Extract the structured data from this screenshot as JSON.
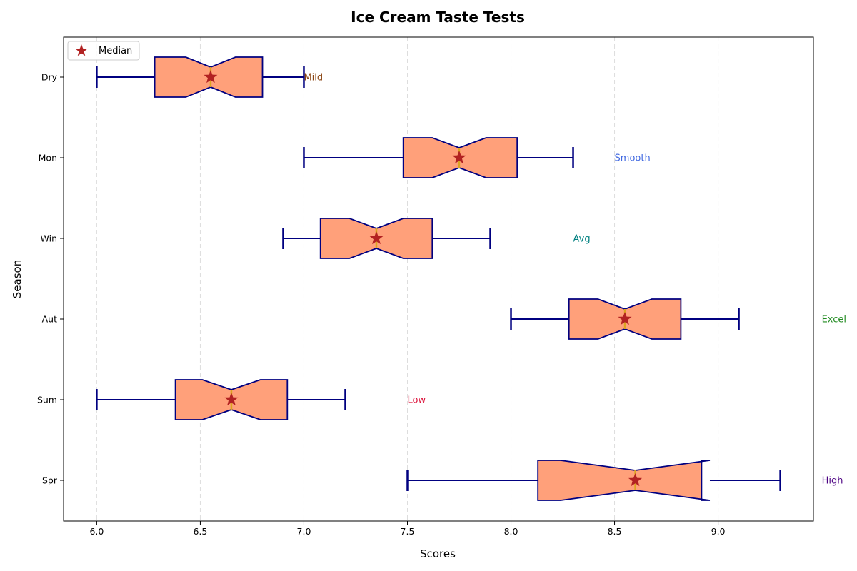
{
  "chart_data": {
    "type": "boxplot",
    "orientation": "horizontal",
    "notched": true,
    "title": "Ice Cream Taste Tests",
    "xlabel": "Scores",
    "ylabel": "Season",
    "xlim": [
      5.84,
      9.46
    ],
    "xticks": [
      6.0,
      6.5,
      7.0,
      7.5,
      8.0,
      8.5,
      9.0
    ],
    "xtick_labels": [
      "6.0",
      "6.5",
      "7.0",
      "7.5",
      "8.0",
      "8.5",
      "9.0"
    ],
    "grid": "vertical-dashed",
    "legend": {
      "placement": "top-left",
      "entries": [
        {
          "label": "Median",
          "marker": "star"
        }
      ]
    },
    "colors": {
      "box_fill": "#FFA07A",
      "box_edge": "#000080",
      "median_line": "#DAA520",
      "median_marker": "#B22222",
      "grid": "#dddddd"
    },
    "categories": [
      "Dry",
      "Mon",
      "Win",
      "Aut",
      "Sum",
      "Spr"
    ],
    "boxes": [
      {
        "category": "Dry",
        "whislo": 6.0,
        "q1": 6.28,
        "notchlo": 6.43,
        "med": 6.55,
        "notchhi": 6.67,
        "q3": 6.8,
        "whishi": 7.0
      },
      {
        "category": "Mon",
        "whislo": 7.0,
        "q1": 7.48,
        "notchlo": 7.62,
        "med": 7.75,
        "notchhi": 7.88,
        "q3": 8.03,
        "whishi": 8.3
      },
      {
        "category": "Win",
        "whislo": 6.9,
        "q1": 7.08,
        "notchlo": 7.22,
        "med": 7.35,
        "notchhi": 7.48,
        "q3": 7.62,
        "whishi": 7.9
      },
      {
        "category": "Aut",
        "whislo": 8.0,
        "q1": 8.28,
        "notchlo": 8.42,
        "med": 8.55,
        "notchhi": 8.68,
        "q3": 8.82,
        "whishi": 9.1
      },
      {
        "category": "Sum",
        "whislo": 6.0,
        "q1": 6.38,
        "notchlo": 6.51,
        "med": 6.65,
        "notchhi": 6.79,
        "q3": 6.92,
        "whishi": 7.2
      },
      {
        "category": "Spr",
        "whislo": 7.5,
        "q1": 8.13,
        "notchlo": 8.24,
        "med": 8.6,
        "notchhi": 8.96,
        "q3": 8.92,
        "whishi": 9.3
      }
    ],
    "annotations": [
      {
        "category": "Dry",
        "x": 7.0,
        "text": "Mild",
        "color": "#8B4513"
      },
      {
        "category": "Mon",
        "x": 8.5,
        "text": "Smooth",
        "color": "#4169E1"
      },
      {
        "category": "Win",
        "x": 8.3,
        "text": "Avg",
        "color": "#008080"
      },
      {
        "category": "Aut",
        "x": 9.5,
        "text": "Excel",
        "color": "#228B22"
      },
      {
        "category": "Sum",
        "x": 7.5,
        "text": "Low",
        "color": "#DC143C"
      },
      {
        "category": "Spr",
        "x": 9.5,
        "text": "High",
        "color": "#4B0082"
      }
    ]
  }
}
